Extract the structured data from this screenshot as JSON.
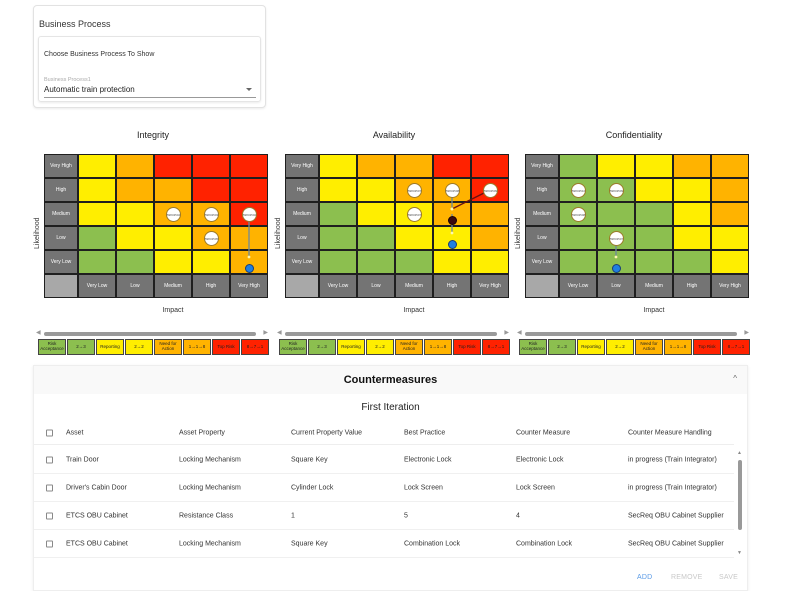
{
  "business_process": {
    "title": "Business Process",
    "choose_label": "Choose Business Process To Show",
    "select_label": "Business Process1",
    "selected_value": "Automatic train protection"
  },
  "colors": {
    "green": "#8cbf4f",
    "yellow": "#ffee00",
    "orange": "#ffb300",
    "red": "#ff2200",
    "label_gray": "#747474"
  },
  "matrix_common": {
    "ylabel": "Likelihood",
    "xlabel": "Impact",
    "rows": [
      "Very High",
      "High",
      "Medium",
      "Low",
      "Very Low"
    ],
    "cols": [
      "Very Low",
      "Low",
      "Medium",
      "High",
      "Very High"
    ]
  },
  "matrices": [
    {
      "title": "Integrity",
      "grid": [
        [
          "yellow",
          "orange",
          "red",
          "red",
          "red"
        ],
        [
          "yellow",
          "orange",
          "orange",
          "red",
          "red"
        ],
        [
          "yellow",
          "yellow",
          "orange",
          "orange",
          "red"
        ],
        [
          "green",
          "yellow",
          "yellow",
          "orange",
          "orange"
        ],
        [
          "green",
          "green",
          "yellow",
          "yellow",
          "orange"
        ]
      ],
      "circles": [
        {
          "label": "59843504",
          "row": 2,
          "col": 2
        },
        {
          "label": "59843503",
          "row": 2,
          "col": 3
        },
        {
          "label": "59843502",
          "row": 2,
          "col": 4
        },
        {
          "label": "59843505",
          "row": 3,
          "col": 3
        }
      ],
      "dots": [
        {
          "color": "blue",
          "row": 4,
          "col": 4
        }
      ],
      "arrows": [
        {
          "from": [
            2,
            4
          ],
          "to": [
            4,
            4
          ]
        }
      ]
    },
    {
      "title": "Availability",
      "grid": [
        [
          "yellow",
          "orange",
          "orange",
          "red",
          "red"
        ],
        [
          "yellow",
          "yellow",
          "orange",
          "orange",
          "red"
        ],
        [
          "green",
          "yellow",
          "yellow",
          "orange",
          "orange"
        ],
        [
          "green",
          "green",
          "yellow",
          "yellow",
          "orange"
        ],
        [
          "green",
          "green",
          "green",
          "yellow",
          "yellow"
        ]
      ],
      "circles": [
        {
          "label": "59843507",
          "row": 1,
          "col": 2
        },
        {
          "label": "59843508",
          "row": 1,
          "col": 3
        },
        {
          "label": "59843509",
          "row": 1,
          "col": 4
        },
        {
          "label": "59843507",
          "row": 2,
          "col": 2
        }
      ],
      "dots": [
        {
          "color": "dark",
          "row": 2,
          "col": 3
        },
        {
          "color": "blue",
          "row": 3,
          "col": 3
        }
      ],
      "arrows": [
        {
          "from": [
            1,
            3
          ],
          "to": [
            2,
            3
          ]
        },
        {
          "from": [
            1,
            4
          ],
          "to": [
            2,
            3
          ]
        },
        {
          "from": [
            2,
            3
          ],
          "to": [
            3,
            3
          ]
        }
      ]
    },
    {
      "title": "Confidentiality",
      "grid": [
        [
          "green",
          "yellow",
          "yellow",
          "orange",
          "orange"
        ],
        [
          "green",
          "green",
          "yellow",
          "yellow",
          "orange"
        ],
        [
          "green",
          "green",
          "green",
          "yellow",
          "orange"
        ],
        [
          "green",
          "green",
          "green",
          "yellow",
          "yellow"
        ],
        [
          "green",
          "green",
          "green",
          "green",
          "yellow"
        ]
      ],
      "circles": [
        {
          "label": "59843510",
          "row": 1,
          "col": 0
        },
        {
          "label": "59843509",
          "row": 1,
          "col": 1
        },
        {
          "label": "59843508",
          "row": 2,
          "col": 0
        },
        {
          "label": "59843507",
          "row": 3,
          "col": 1
        }
      ],
      "dots": [
        {
          "color": "blue",
          "row": 4,
          "col": 1
        }
      ],
      "arrows": [
        {
          "from": [
            3,
            1
          ],
          "to": [
            4,
            1
          ]
        }
      ]
    }
  ],
  "legend": [
    {
      "label": "Risk Acceptance",
      "color": "green"
    },
    {
      "label": "2→3",
      "color": "green"
    },
    {
      "label": "Reporting",
      "color": "yellow"
    },
    {
      "label": "2→2",
      "color": "yellow"
    },
    {
      "label": "Need for Action",
      "color": "orange"
    },
    {
      "label": "1→1→8",
      "color": "orange"
    },
    {
      "label": "Top Risk",
      "color": "red"
    },
    {
      "label": "8→7→1",
      "color": "red"
    }
  ],
  "countermeasures": {
    "title": "Countermeasures",
    "collapse_icon": "^",
    "iteration": "First Iteration",
    "columns": [
      "Asset",
      "Asset Property",
      "Current Property Value",
      "Best Practice",
      "Counter Measure",
      "Counter Measure Handling"
    ],
    "rows": [
      [
        "Train Door",
        "Locking Mechanism",
        "Square Key",
        "Electronic Lock",
        "Electronic Lock",
        "in progress (Train Integrator)"
      ],
      [
        "Driver's Cabin Door",
        "Locking Mechanism",
        "Cylinder Lock",
        "Lock Screen",
        "Lock Screen",
        "in progress (Train Integrator)"
      ],
      [
        "ETCS OBU Cabinet",
        "Resistance Class",
        "1",
        "5",
        "4",
        "SecReq OBU Cabinet Supplier"
      ],
      [
        "ETCS OBU Cabinet",
        "Locking Mechanism",
        "Square Key",
        "Combination Lock",
        "Combination Lock",
        "SecReq OBU Cabinet Supplier"
      ]
    ],
    "buttons": {
      "add": "ADD",
      "remove": "REMOVE",
      "save": "SAVE"
    }
  }
}
